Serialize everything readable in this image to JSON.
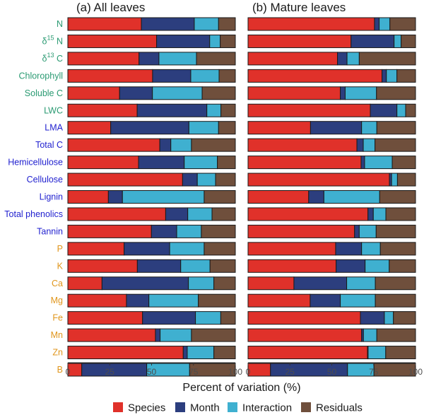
{
  "chart_data": {
    "type": "bar",
    "orientation": "horizontal",
    "stacked": true,
    "xlabel": "Percent of variation (%)",
    "xlim": [
      0,
      100
    ],
    "xticks": [
      0,
      25,
      50,
      75,
      100
    ],
    "grid": false,
    "legend_position": "bottom",
    "series_names": [
      "Species",
      "Month",
      "Interaction",
      "Residuals"
    ],
    "series_colors": [
      "#e0312a",
      "#2c3e7e",
      "#3fb0d0",
      "#6f4f3c"
    ],
    "categories": [
      {
        "label": "N",
        "group": "green"
      },
      {
        "label": "δ15N",
        "prefix": "δ",
        "sup": "15",
        "suffix": " N",
        "group": "green"
      },
      {
        "label": "δ13C",
        "prefix": "δ",
        "sup": "13",
        "suffix": " C",
        "group": "green"
      },
      {
        "label": "Chlorophyll",
        "group": "green"
      },
      {
        "label": "Soluble C",
        "group": "green"
      },
      {
        "label": "LWC",
        "group": "green"
      },
      {
        "label": "LMA",
        "group": "blue"
      },
      {
        "label": "Total C",
        "group": "blue"
      },
      {
        "label": "Hemicellulose",
        "group": "blue"
      },
      {
        "label": "Cellulose",
        "group": "blue"
      },
      {
        "label": "Lignin",
        "group": "blue"
      },
      {
        "label": "Total phenolics",
        "group": "blue"
      },
      {
        "label": "Tannin",
        "group": "blue"
      },
      {
        "label": "P",
        "group": "orange"
      },
      {
        "label": "K",
        "group": "orange"
      },
      {
        "label": "Ca",
        "group": "orange"
      },
      {
        "label": "Mg",
        "group": "orange"
      },
      {
        "label": "Fe",
        "group": "orange"
      },
      {
        "label": "Mn",
        "group": "orange"
      },
      {
        "label": "Zn",
        "group": "orange"
      },
      {
        "label": "B",
        "group": "orange"
      }
    ],
    "label_group_colors": {
      "green": "#2a9a72",
      "blue": "#1f1fcf",
      "orange": "#e0961c"
    },
    "panels": [
      {
        "title": "(a) All leaves",
        "values": [
          [
            43.9,
            31.6,
            14.5,
            10.0
          ],
          [
            53.0,
            31.7,
            6.3,
            9.0
          ],
          [
            42.5,
            11.9,
            22.4,
            23.2
          ],
          [
            50.6,
            22.8,
            16.9,
            9.7
          ],
          [
            30.9,
            19.6,
            29.7,
            19.8
          ],
          [
            41.4,
            41.6,
            8.4,
            8.6
          ],
          [
            25.6,
            46.7,
            17.7,
            10.0
          ],
          [
            54.9,
            6.6,
            12.3,
            26.2
          ],
          [
            42.2,
            27.3,
            19.8,
            10.7
          ],
          [
            68.5,
            8.8,
            10.9,
            11.8
          ],
          [
            24.2,
            8.4,
            48.8,
            18.6
          ],
          [
            58.4,
            13.2,
            14.5,
            13.9
          ],
          [
            49.9,
            15.1,
            14.7,
            20.3
          ],
          [
            33.6,
            27.2,
            20.6,
            18.6
          ],
          [
            41.5,
            25.9,
            17.5,
            15.1
          ],
          [
            20.4,
            51.6,
            15.2,
            12.8
          ],
          [
            35.0,
            13.4,
            29.5,
            22.1
          ],
          [
            44.6,
            31.6,
            15.1,
            8.7
          ],
          [
            52.3,
            2.8,
            18.7,
            26.2
          ],
          [
            68.9,
            2.4,
            15.9,
            12.8
          ],
          [
            8.3,
            38.8,
            25.6,
            27.3
          ]
        ]
      },
      {
        "title": "(b) Mature leaves",
        "values": [
          [
            75.5,
            2.8,
            6.4,
            15.3
          ],
          [
            61.5,
            25.7,
            4.2,
            8.6
          ],
          [
            53.4,
            5.7,
            7.3,
            33.6
          ],
          [
            80.0,
            2.6,
            6.3,
            11.1
          ],
          [
            55.1,
            2.9,
            18.7,
            23.3
          ],
          [
            73.0,
            15.9,
            5.2,
            5.9
          ],
          [
            37.3,
            30.5,
            9.1,
            23.1
          ],
          [
            65.0,
            3.8,
            7.0,
            24.2
          ],
          [
            67.5,
            2.1,
            16.5,
            13.9
          ],
          [
            84.4,
            1.3,
            3.5,
            10.8
          ],
          [
            36.2,
            9.1,
            33.3,
            21.4
          ],
          [
            71.6,
            3.2,
            7.5,
            17.7
          ],
          [
            63.6,
            2.8,
            10.1,
            23.5
          ],
          [
            52.3,
            15.5,
            11.2,
            21.0
          ],
          [
            52.6,
            17.3,
            14.4,
            15.7
          ],
          [
            27.4,
            31.5,
            17.1,
            24.0
          ],
          [
            37.1,
            18.0,
            20.9,
            24.0
          ],
          [
            67.1,
            14.3,
            5.4,
            13.2
          ],
          [
            67.8,
            1.1,
            8.0,
            23.1
          ],
          [
            71.3,
            0.4,
            10.5,
            17.8
          ],
          [
            13.4,
            46.0,
            15.8,
            24.8
          ]
        ]
      }
    ]
  }
}
